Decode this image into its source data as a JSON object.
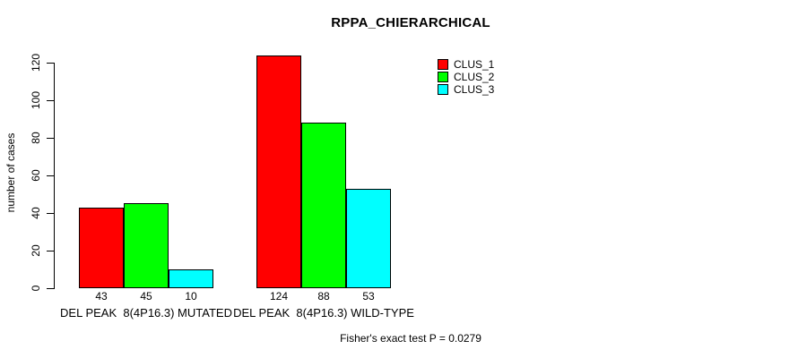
{
  "chart_data": {
    "type": "bar",
    "title": "RPPA_CHIERARCHICAL",
    "xlabel": "",
    "ylabel": "number of cases",
    "ylim": [
      0,
      120
    ],
    "yticks": [
      0,
      20,
      40,
      60,
      80,
      100,
      120
    ],
    "grid": "off",
    "legend_position": "top-right",
    "categories": [
      "DEL PEAK  8(4P16.3) MUTATED",
      "DEL PEAK  8(4P16.3) WILD-TYPE"
    ],
    "series": [
      {
        "name": "CLUS_1",
        "color": "#FF0000",
        "values": [
          43,
          124
        ]
      },
      {
        "name": "CLUS_2",
        "color": "#00FF00",
        "values": [
          45,
          88
        ]
      },
      {
        "name": "CLUS_3",
        "color": "#00FFFF",
        "values": [
          10,
          53
        ]
      }
    ],
    "bar_labels": [
      [
        43,
        45,
        10
      ],
      [
        124,
        88,
        53
      ]
    ],
    "annotation": "Fisher's exact test P = 0.0279",
    "axis_color": "#000000",
    "background_color": "#FFFFFF"
  }
}
